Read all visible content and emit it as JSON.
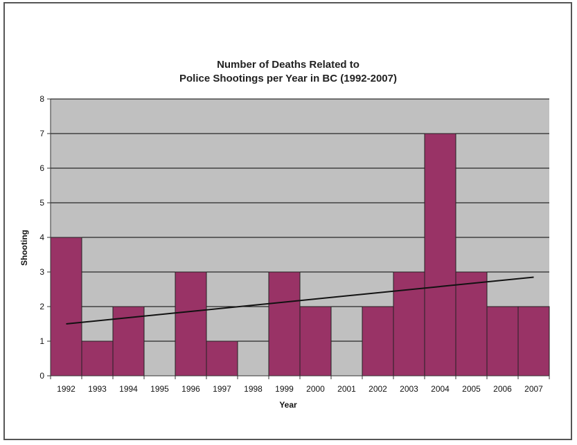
{
  "chart_data": {
    "type": "bar",
    "title": [
      "Number of Deaths Related to",
      "Police Shootings per Year in BC (1992-2007)"
    ],
    "xlabel": "Year",
    "ylabel": "Shooting",
    "categories": [
      "1992",
      "1993",
      "1994",
      "1995",
      "1996",
      "1997",
      "1998",
      "1999",
      "2000",
      "2001",
      "2002",
      "2003",
      "2004",
      "2005",
      "2006",
      "2007"
    ],
    "values": [
      4,
      1,
      2,
      0,
      3,
      1,
      0,
      3,
      2,
      0,
      2,
      3,
      7,
      3,
      2,
      2
    ],
    "ylim": [
      0,
      8
    ],
    "yticks": [
      0,
      1,
      2,
      3,
      4,
      5,
      6,
      7,
      8
    ],
    "grid": true,
    "legend": "none",
    "trendline": {
      "type": "linear",
      "start": 1.5,
      "end": 2.85
    },
    "colors": {
      "bar": "#993366",
      "bar_edge": "#222222",
      "plot_bg": "#c0c0c0",
      "grid": "#000000",
      "trendline": "#111111"
    }
  }
}
